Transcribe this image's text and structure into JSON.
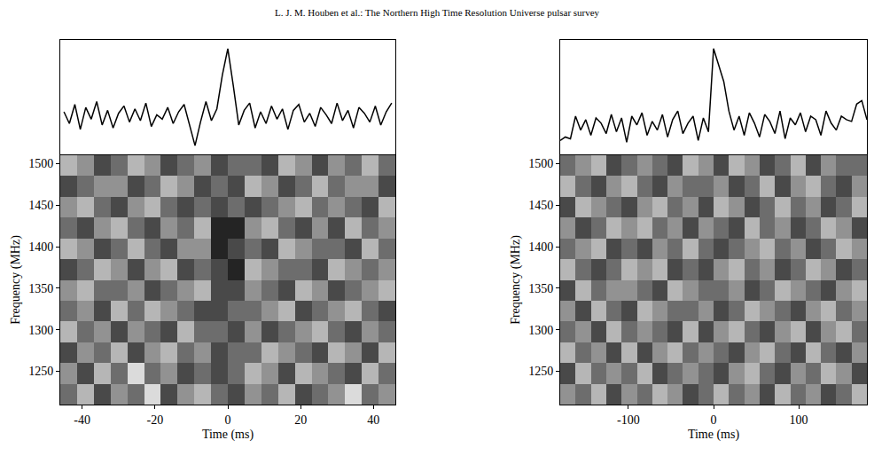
{
  "header": "L. J. M. Houben et al.: The Northern High Time Resolution Universe pulsar survey",
  "chart_data": [
    {
      "type": "line",
      "color": "#000000",
      "tick_labels": false,
      "xlim": [
        -46,
        46
      ],
      "ylim": [
        -2.6,
        5.2
      ],
      "x": [
        -45,
        -43.5,
        -42,
        -40.5,
        -39,
        -37.5,
        -36,
        -34.5,
        -33,
        -31.5,
        -30,
        -28.5,
        -27,
        -25.5,
        -24,
        -22.5,
        -21,
        -19.5,
        -18,
        -16.5,
        -15,
        -13.5,
        -12,
        -10.5,
        -9,
        -7.5,
        -6,
        -4.5,
        -3,
        -1.5,
        0,
        1.5,
        3,
        4.5,
        6,
        7.5,
        9,
        10.5,
        12,
        13.5,
        15,
        16.5,
        18,
        19.5,
        21,
        22.5,
        24,
        25.5,
        27,
        28.5,
        30,
        31.5,
        33,
        34.5,
        36,
        37.5,
        39,
        40.5,
        42,
        43.5,
        45
      ],
      "values": [
        0.3,
        -0.5,
        0.8,
        -0.9,
        0.6,
        -0.2,
        1.0,
        -0.6,
        0.4,
        -0.8,
        0.2,
        0.7,
        -0.4,
        0.5,
        -0.3,
        0.9,
        -0.7,
        0.1,
        -0.2,
        0.6,
        -0.5,
        0.3,
        0.8,
        -0.6,
        -2.0,
        -0.4,
        1.0,
        -0.3,
        0.5,
        2.8,
        4.6,
        2.1,
        -0.6,
        0.4,
        0.9,
        -0.8,
        0.3,
        -0.5,
        0.7,
        -0.2,
        0.5,
        -0.9,
        0.4,
        0.8,
        -0.4,
        0.2,
        -0.7,
        0.6,
        0.1,
        -0.5,
        0.9,
        -0.3,
        0.4,
        -0.8,
        0.6,
        0.2,
        -0.4,
        0.7,
        -0.6,
        0.3,
        0.9
      ]
    },
    {
      "type": "heatmap",
      "xlabel": "Time (ms)",
      "ylabel": "Frequency (MHz)",
      "xlim": [
        -46,
        46
      ],
      "xticks": [
        -40,
        -20,
        0,
        20,
        40
      ],
      "ylim": [
        1210,
        1510
      ],
      "yticks": [
        1250,
        1300,
        1350,
        1400,
        1450,
        1500
      ],
      "zlim": [
        1,
        8
      ],
      "x": [
        -43.7,
        -39.1,
        -34.5,
        -29.9,
        -25.3,
        -20.7,
        -16.1,
        -11.5,
        -6.9,
        -2.3,
        2.3,
        6.9,
        11.5,
        16.1,
        20.7,
        25.3,
        29.9,
        34.5,
        39.1,
        43.7
      ],
      "y": [
        1222.5,
        1247.5,
        1272.5,
        1297.5,
        1322.5,
        1347.5,
        1372.5,
        1397.5,
        1422.5,
        1447.5,
        1472.5,
        1497.5
      ],
      "z": [
        [
          5,
          3,
          6,
          4,
          5,
          2,
          6,
          4,
          3,
          5,
          6,
          4,
          5,
          3,
          6,
          5,
          4,
          2,
          5,
          4
        ],
        [
          4,
          6,
          3,
          5,
          2,
          5,
          4,
          6,
          5,
          6,
          5,
          3,
          4,
          6,
          3,
          4,
          5,
          6,
          3,
          5
        ],
        [
          6,
          4,
          5,
          3,
          6,
          4,
          3,
          5,
          4,
          6,
          5,
          5,
          3,
          4,
          5,
          6,
          3,
          4,
          6,
          3
        ],
        [
          3,
          5,
          4,
          6,
          4,
          5,
          6,
          3,
          5,
          5,
          6,
          4,
          6,
          5,
          4,
          3,
          5,
          6,
          4,
          5
        ],
        [
          5,
          4,
          6,
          3,
          5,
          3,
          4,
          5,
          6,
          6,
          5,
          5,
          4,
          3,
          6,
          5,
          4,
          3,
          5,
          6
        ],
        [
          4,
          3,
          5,
          5,
          4,
          6,
          5,
          4,
          3,
          6,
          6,
          4,
          5,
          6,
          3,
          4,
          6,
          5,
          4,
          3
        ],
        [
          6,
          5,
          3,
          4,
          6,
          4,
          3,
          6,
          5,
          6,
          7,
          3,
          4,
          5,
          5,
          6,
          3,
          4,
          5,
          4
        ],
        [
          3,
          4,
          6,
          5,
          3,
          5,
          6,
          4,
          4,
          7,
          6,
          5,
          6,
          3,
          4,
          5,
          5,
          6,
          3,
          5
        ],
        [
          5,
          6,
          4,
          3,
          5,
          6,
          4,
          5,
          3,
          7,
          7,
          4,
          3,
          5,
          6,
          4,
          6,
          3,
          5,
          4
        ],
        [
          4,
          3,
          5,
          6,
          4,
          3,
          5,
          6,
          5,
          6,
          5,
          6,
          5,
          4,
          3,
          5,
          4,
          5,
          6,
          3
        ],
        [
          6,
          5,
          4,
          4,
          6,
          5,
          3,
          4,
          6,
          5,
          6,
          3,
          4,
          6,
          5,
          3,
          5,
          4,
          4,
          6
        ],
        [
          3,
          4,
          6,
          5,
          3,
          4,
          6,
          5,
          4,
          6,
          5,
          5,
          6,
          3,
          4,
          6,
          4,
          5,
          3,
          5
        ]
      ]
    },
    {
      "type": "line",
      "color": "#000000",
      "tick_labels": false,
      "xlim": [
        -180,
        180
      ],
      "ylim": [
        -1.6,
        5.0
      ],
      "x": [
        -180,
        -174,
        -168,
        -162,
        -156,
        -150,
        -144,
        -138,
        -132,
        -126,
        -120,
        -114,
        -108,
        -102,
        -96,
        -90,
        -84,
        -78,
        -72,
        -66,
        -60,
        -54,
        -48,
        -42,
        -36,
        -30,
        -24,
        -18,
        -12,
        -6,
        0,
        6,
        12,
        18,
        24,
        30,
        36,
        42,
        48,
        54,
        60,
        66,
        72,
        78,
        84,
        90,
        96,
        102,
        108,
        114,
        120,
        126,
        132,
        138,
        144,
        150,
        156,
        162,
        168,
        174,
        180
      ],
      "values": [
        -0.8,
        -0.6,
        -0.7,
        0.6,
        -0.2,
        0.4,
        -0.5,
        0.5,
        0.2,
        -0.4,
        0.7,
        -0.3,
        0.5,
        -0.9,
        0.6,
        0.1,
        0.8,
        -0.5,
        0.3,
        -0.2,
        0.7,
        -0.6,
        0.4,
        0.9,
        -0.4,
        0.2,
        0.6,
        -0.8,
        0.5,
        -0.3,
        4.5,
        3.6,
        2.6,
        0.9,
        -0.2,
        0.6,
        -0.5,
        0.8,
        0.2,
        -0.6,
        0.7,
        0.3,
        -0.4,
        0.9,
        -0.7,
        0.5,
        0.1,
        0.8,
        -0.3,
        0.6,
        0.4,
        -0.5,
        0.9,
        0.2,
        -0.2,
        0.6,
        0.4,
        0.3,
        1.3,
        1.5,
        0.4
      ]
    },
    {
      "type": "heatmap",
      "xlabel": "Time (ms)",
      "ylabel": "Frequency (MHz)",
      "xlim": [
        -180,
        180
      ],
      "xticks": [
        -100,
        0,
        100
      ],
      "ylim": [
        1210,
        1510
      ],
      "yticks": [
        1250,
        1300,
        1350,
        1400,
        1450,
        1500
      ],
      "zlim": [
        1,
        8
      ],
      "x": [
        -171,
        -153,
        -135,
        -117,
        -99,
        -81,
        -63,
        -45,
        -27,
        -9,
        9,
        27,
        45,
        63,
        81,
        99,
        117,
        135,
        153,
        171
      ],
      "y": [
        1222.5,
        1247.5,
        1272.5,
        1297.5,
        1322.5,
        1347.5,
        1372.5,
        1397.5,
        1422.5,
        1447.5,
        1472.5,
        1497.5
      ],
      "z": [
        [
          4,
          5,
          3,
          6,
          4,
          5,
          3,
          4,
          6,
          5,
          3,
          5,
          4,
          6,
          3,
          5,
          4,
          6,
          5,
          3
        ],
        [
          6,
          3,
          5,
          4,
          5,
          3,
          6,
          5,
          4,
          5,
          6,
          4,
          3,
          5,
          6,
          4,
          5,
          3,
          4,
          6
        ],
        [
          3,
          5,
          4,
          6,
          3,
          6,
          4,
          3,
          5,
          4,
          5,
          6,
          4,
          3,
          5,
          6,
          3,
          5,
          6,
          4
        ],
        [
          5,
          4,
          6,
          3,
          5,
          4,
          5,
          6,
          3,
          6,
          4,
          3,
          5,
          6,
          4,
          3,
          6,
          4,
          3,
          5
        ],
        [
          4,
          6,
          3,
          5,
          6,
          3,
          4,
          5,
          5,
          4,
          6,
          5,
          3,
          4,
          5,
          6,
          4,
          3,
          5,
          4
        ],
        [
          6,
          3,
          5,
          4,
          4,
          5,
          6,
          3,
          4,
          5,
          5,
          4,
          6,
          5,
          3,
          4,
          5,
          6,
          4,
          3
        ],
        [
          3,
          5,
          6,
          5,
          3,
          4,
          3,
          6,
          5,
          6,
          4,
          3,
          5,
          4,
          6,
          5,
          3,
          4,
          6,
          5
        ],
        [
          5,
          4,
          3,
          6,
          5,
          6,
          4,
          5,
          3,
          5,
          6,
          5,
          4,
          3,
          5,
          4,
          6,
          5,
          3,
          4
        ],
        [
          4,
          6,
          5,
          3,
          4,
          3,
          5,
          4,
          6,
          4,
          5,
          6,
          3,
          5,
          4,
          6,
          5,
          3,
          4,
          6
        ],
        [
          6,
          3,
          4,
          5,
          6,
          4,
          3,
          5,
          4,
          6,
          3,
          4,
          6,
          5,
          3,
          5,
          4,
          6,
          5,
          3
        ],
        [
          3,
          5,
          6,
          4,
          3,
          5,
          6,
          4,
          5,
          5,
          4,
          6,
          5,
          3,
          6,
          4,
          3,
          5,
          6,
          4
        ],
        [
          5,
          4,
          3,
          6,
          5,
          4,
          5,
          6,
          3,
          4,
          6,
          3,
          4,
          6,
          5,
          3,
          6,
          4,
          5,
          5
        ]
      ]
    }
  ]
}
